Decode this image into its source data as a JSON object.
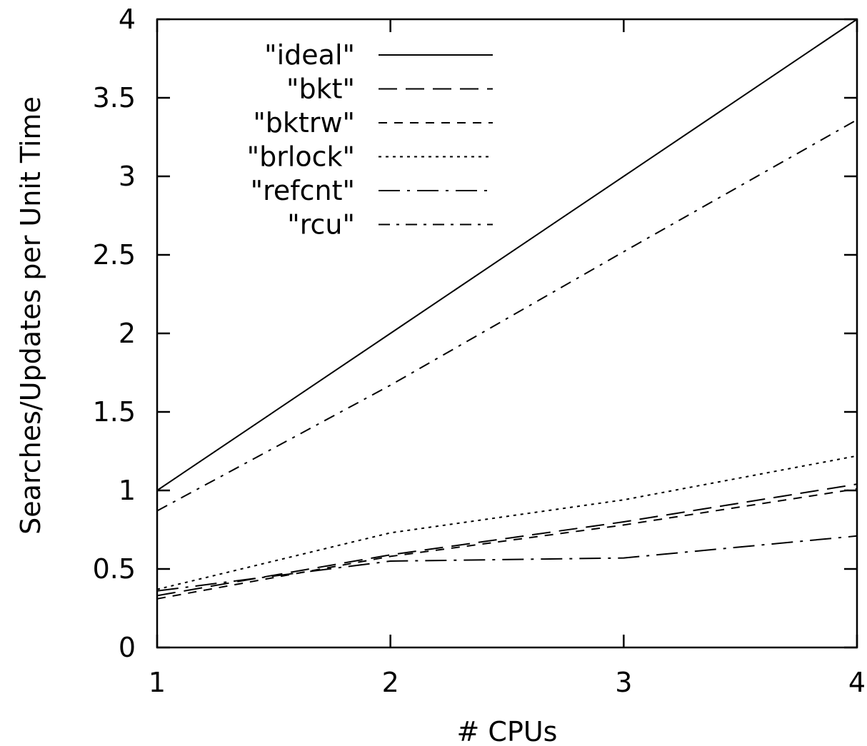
{
  "chart_data": {
    "type": "line",
    "title": "",
    "xlabel": "# CPUs",
    "ylabel": "Searches/Updates per Unit Time",
    "xlim": [
      1,
      4
    ],
    "ylim": [
      0,
      4
    ],
    "x_ticks": [
      1,
      2,
      3,
      4
    ],
    "x_tick_labels": [
      "1",
      "2",
      "3",
      "4"
    ],
    "y_ticks": [
      0,
      0.5,
      1,
      1.5,
      2,
      2.5,
      3,
      3.5,
      4
    ],
    "y_tick_labels": [
      "0",
      "0.5",
      "1",
      "1.5",
      "2",
      "2.5",
      "3",
      "3.5",
      "4"
    ],
    "grid": false,
    "legend_position": "top-left",
    "line_color": "#000000",
    "x": [
      1,
      2,
      3,
      4
    ],
    "series": [
      {
        "name": "\"ideal\"",
        "dash": "solid",
        "values": [
          1.0,
          2.0,
          3.0,
          4.0
        ]
      },
      {
        "name": "\"bkt\"",
        "dash": "long-dash",
        "values": [
          0.33,
          0.59,
          0.8,
          1.04
        ]
      },
      {
        "name": "\"bktrw\"",
        "dash": "short-dash",
        "values": [
          0.31,
          0.58,
          0.78,
          1.01
        ]
      },
      {
        "name": "\"brlock\"",
        "dash": "dotted",
        "values": [
          0.37,
          0.73,
          0.94,
          1.22
        ]
      },
      {
        "name": "\"refcnt\"",
        "dash": "long-dash-dot",
        "values": [
          0.36,
          0.55,
          0.57,
          0.71
        ]
      },
      {
        "name": "\"rcu\"",
        "dash": "dash-dot",
        "values": [
          0.87,
          1.67,
          2.52,
          3.36
        ]
      }
    ]
  }
}
